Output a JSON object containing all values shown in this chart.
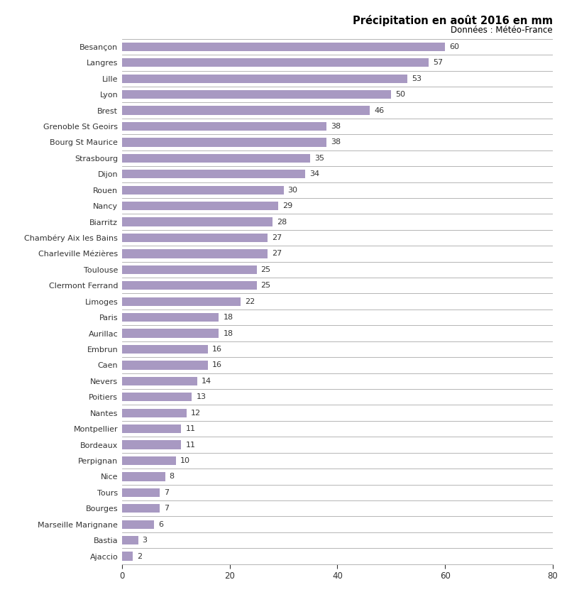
{
  "title": "Précipitation en août 2016 en mm",
  "subtitle": "Données : Météo-France",
  "cities": [
    "Besançon",
    "Langres",
    "Lille",
    "Lyon",
    "Brest",
    "Grenoble St Geoirs",
    "Bourg St Maurice",
    "Strasbourg",
    "Dijon",
    "Rouen",
    "Nancy",
    "Biarritz",
    "Chambéry Aix les Bains",
    "Charleville Mézières",
    "Toulouse",
    "Clermont Ferrand",
    "Limoges",
    "Paris",
    "Aurillac",
    "Embrun",
    "Caen",
    "Nevers",
    "Poitiers",
    "Nantes",
    "Montpellier",
    "Bordeaux",
    "Perpignan",
    "Nice",
    "Tours",
    "Bourges",
    "Marseille Marignane",
    "Bastia",
    "Ajaccio"
  ],
  "values": [
    60,
    57,
    53,
    50,
    46,
    38,
    38,
    35,
    34,
    30,
    29,
    28,
    27,
    27,
    25,
    25,
    22,
    18,
    18,
    16,
    16,
    14,
    13,
    12,
    11,
    11,
    10,
    8,
    7,
    7,
    6,
    3,
    2
  ],
  "bar_color": "#a899c2",
  "bg_color": "#ffffff",
  "sep_line_color": "#aaaaaa",
  "text_color": "#333333",
  "title_color": "#000000",
  "xlim": [
    0,
    80
  ],
  "xticks": [
    0,
    20,
    40,
    60,
    80
  ],
  "bar_height": 0.55,
  "title_fontsize": 10.5,
  "subtitle_fontsize": 8.5,
  "label_fontsize": 8,
  "value_fontsize": 8,
  "tick_fontsize": 8.5
}
